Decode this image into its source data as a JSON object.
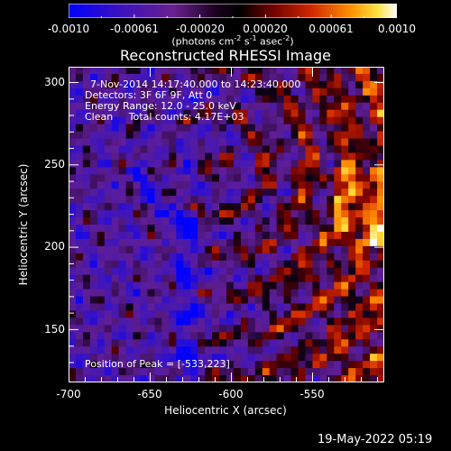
{
  "colorbar": {
    "ticks": [
      "-0.0010",
      "-0.00061",
      "-0.00020",
      "0.00020",
      "0.00061",
      "0.0010"
    ],
    "units_text": "(photons cm",
    "units_sup1": "-2",
    "units_mid": " s",
    "units_sup2": "-1",
    "units_mid2": " asec",
    "units_sup3": "-2",
    "units_end": ")",
    "colors": [
      "#0000ff",
      "#2b0a80",
      "#5a1aa0",
      "#1a0030",
      "#000000",
      "#6b0000",
      "#c02000",
      "#ff7000",
      "#ffd020",
      "#ffffff"
    ]
  },
  "title": "Reconstructed RHESSI Image",
  "annotations": {
    "time_range": "7-Nov-2014 14:17:40.000 to 14:23:40.000",
    "detectors": "Detectors: 3F 6F 9F, Att 0",
    "energy_range": "Energy Range: 12.0 - 25.0 keV",
    "clean_counts": "Clean     Total counts: 4.17E+03",
    "peak": "Position of Peak = [-533,223]"
  },
  "axes": {
    "xlabel": "Heliocentric X (arcsec)",
    "ylabel": "Heliocentric Y (arcsec)",
    "xticks": [
      "-700",
      "-650",
      "-600",
      "-550"
    ],
    "yticks": [
      "300",
      "250",
      "200",
      "150"
    ],
    "xlim": [
      -700,
      -505
    ],
    "ylim": [
      115,
      310
    ]
  },
  "footer": {
    "timestamp": "19-May-2022 05:19"
  }
}
